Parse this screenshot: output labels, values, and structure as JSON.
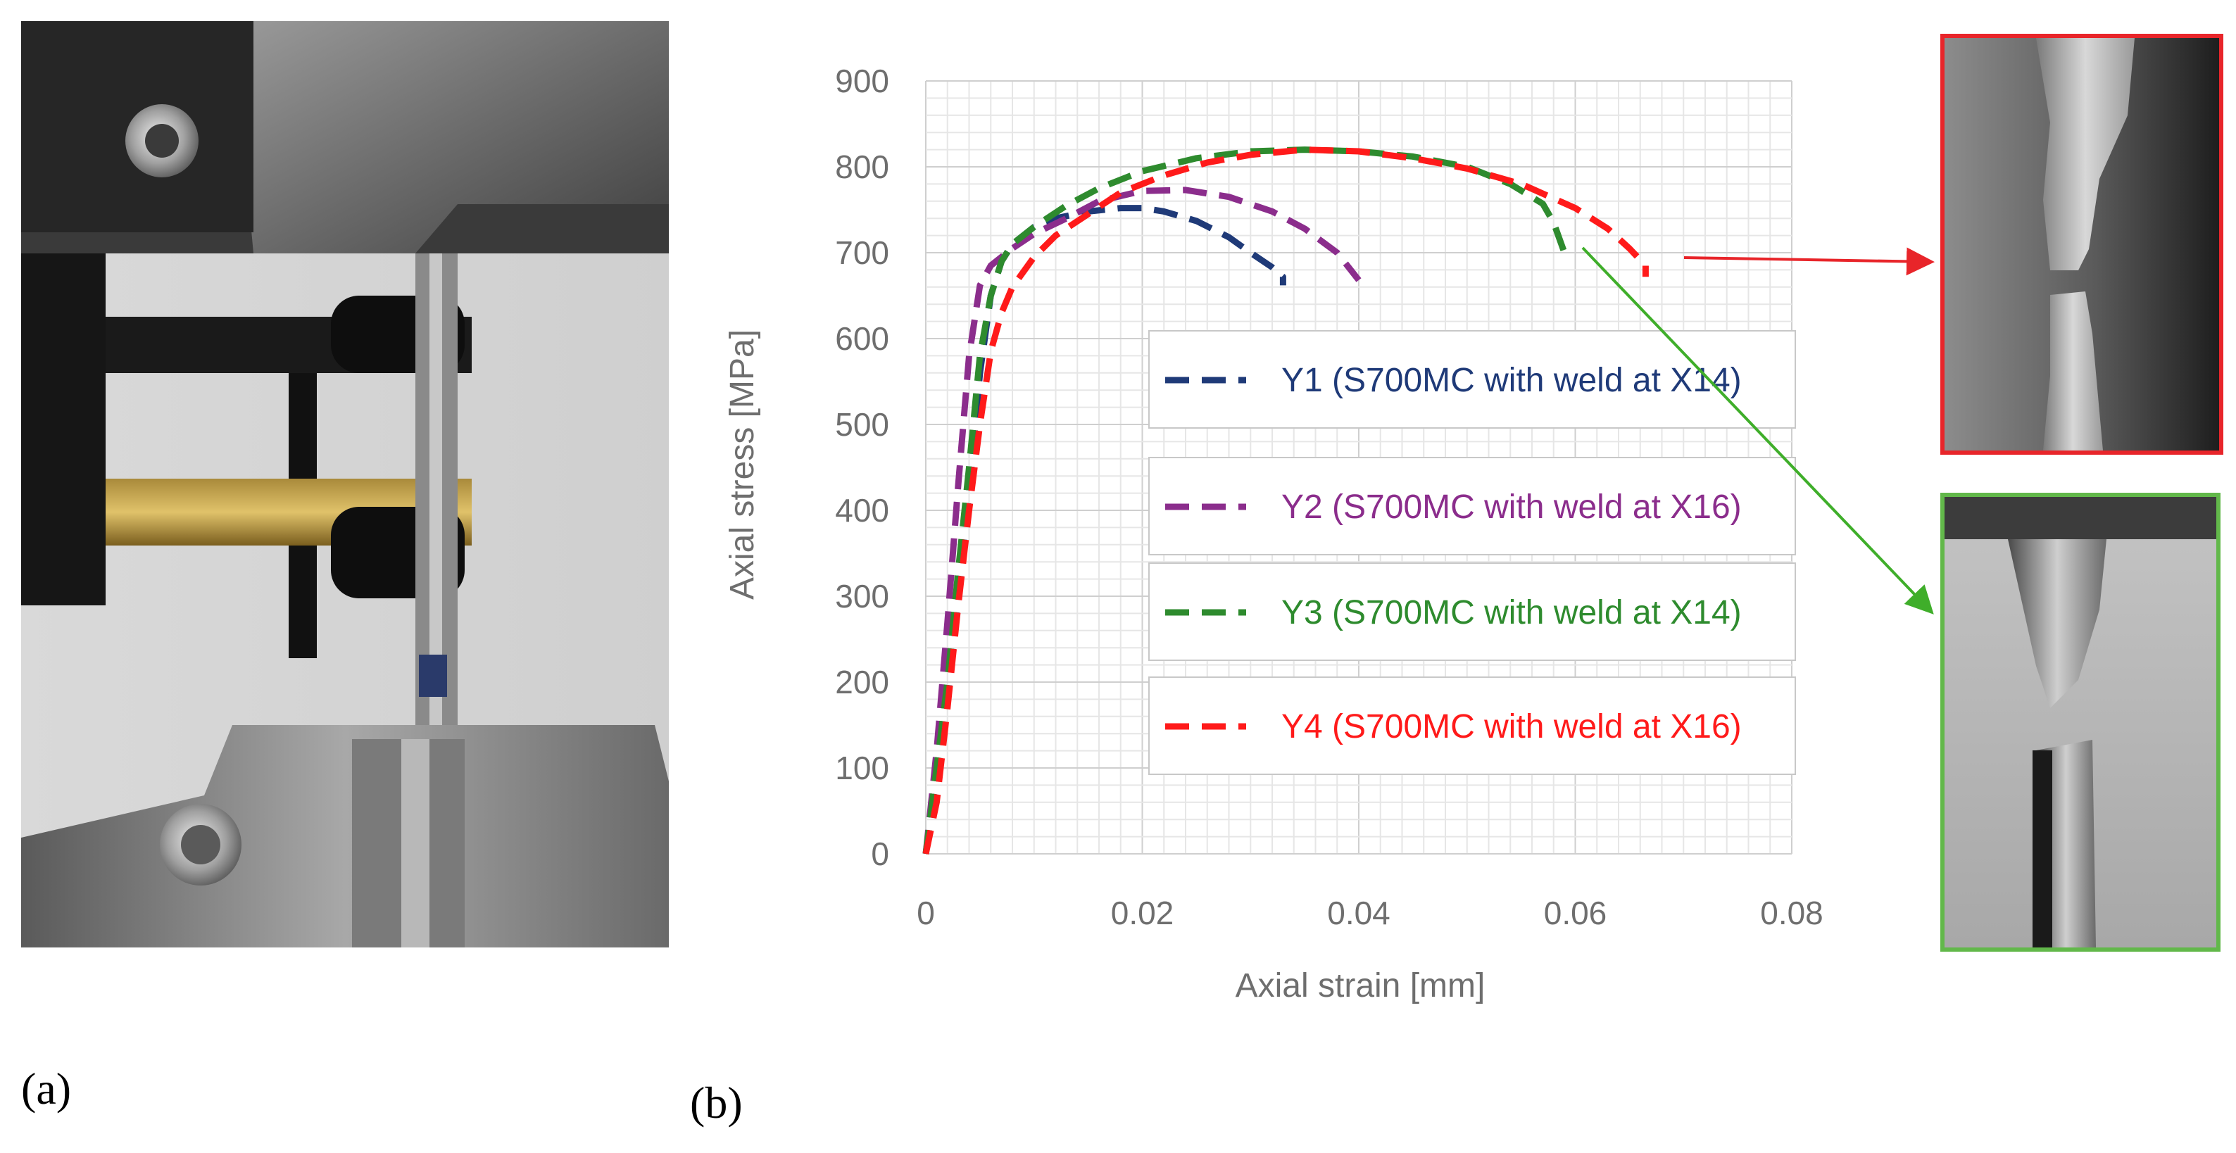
{
  "figure": {
    "panel_a_label": "(a)",
    "panel_b_label": "(b)"
  },
  "colors": {
    "y1": "#1f3a78",
    "y2": "#8b2d8c",
    "y3": "#2e8b2e",
    "y4": "#ff1a1a",
    "red_frame": "#e8252a",
    "green_frame": "#62b84a"
  },
  "chart_data": {
    "type": "line",
    "title": "",
    "xlabel": "Axial strain [mm]",
    "ylabel": "Axial stress [MPa]",
    "xlim": [
      0,
      0.08
    ],
    "ylim": [
      0,
      900
    ],
    "xticks": [
      0,
      0.02,
      0.04,
      0.06,
      0.08
    ],
    "xtick_labels": [
      "0",
      "0.02",
      "0.04",
      "0.06",
      "0.08"
    ],
    "yticks": [
      0,
      100,
      200,
      300,
      400,
      500,
      600,
      700,
      800,
      900
    ],
    "ytick_labels": [
      "0",
      "100",
      "200",
      "300",
      "400",
      "500",
      "600",
      "700",
      "800",
      "900"
    ],
    "grid": true,
    "legend_placement": "center-right",
    "series": [
      {
        "id": "y1",
        "name": "Y1 (S700MC with weld at X14)",
        "color": "#1f3a78",
        "x": [
          0,
          0.002,
          0.004,
          0.005,
          0.006,
          0.007,
          0.008,
          0.01,
          0.012,
          0.015,
          0.018,
          0.02,
          0.022,
          0.025,
          0.028,
          0.03,
          0.032,
          0.033,
          0.033
        ],
        "y": [
          0,
          180,
          420,
          560,
          650,
          690,
          710,
          730,
          740,
          748,
          752,
          752,
          748,
          737,
          718,
          700,
          683,
          672,
          662
        ]
      },
      {
        "id": "y2",
        "name": "Y2 (S700MC with weld at X16)",
        "color": "#8b2d8c",
        "x": [
          0,
          0.001,
          0.002,
          0.003,
          0.004,
          0.005,
          0.006,
          0.008,
          0.01,
          0.013,
          0.016,
          0.02,
          0.024,
          0.028,
          0.032,
          0.035,
          0.038,
          0.04
        ],
        "y": [
          0,
          120,
          270,
          430,
          580,
          662,
          685,
          705,
          722,
          740,
          760,
          772,
          773,
          765,
          748,
          728,
          700,
          668
        ]
      },
      {
        "id": "y3",
        "name": "Y3 (S700MC with weld at X14)",
        "color": "#2e8b2e",
        "x": [
          0,
          0.002,
          0.003,
          0.004,
          0.005,
          0.006,
          0.007,
          0.008,
          0.01,
          0.013,
          0.016,
          0.02,
          0.025,
          0.03,
          0.035,
          0.04,
          0.045,
          0.05,
          0.054,
          0.057,
          0.058,
          0.059
        ],
        "y": [
          0,
          200,
          330,
          450,
          580,
          650,
          690,
          710,
          730,
          755,
          775,
          795,
          810,
          818,
          820,
          818,
          812,
          800,
          780,
          757,
          735,
          700
        ]
      },
      {
        "id": "y4",
        "name": "Y4 (S700MC with weld at X16)",
        "color": "#ff1a1a",
        "x": [
          0,
          0.001,
          0.002,
          0.003,
          0.004,
          0.005,
          0.006,
          0.007,
          0.008,
          0.01,
          0.012,
          0.015,
          0.018,
          0.022,
          0.026,
          0.03,
          0.035,
          0.04,
          0.045,
          0.05,
          0.055,
          0.06,
          0.063,
          0.065,
          0.0665,
          0.0665
        ],
        "y": [
          0,
          60,
          170,
          290,
          400,
          500,
          585,
          630,
          660,
          695,
          720,
          745,
          770,
          790,
          805,
          814,
          820,
          818,
          810,
          798,
          780,
          752,
          728,
          705,
          685,
          672
        ]
      }
    ],
    "annotations": [
      {
        "type": "arrow",
        "from_series": "y4",
        "at_x": 0.0665,
        "at_y": 690,
        "to_inset": "red"
      },
      {
        "type": "arrow",
        "from_series": "y3",
        "at_x": 0.058,
        "at_y": 700,
        "to_inset": "green"
      }
    ]
  }
}
